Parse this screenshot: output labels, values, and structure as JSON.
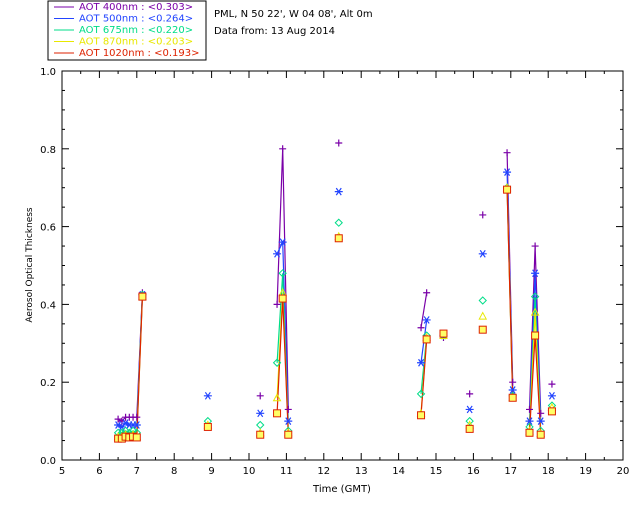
{
  "chart_data": {
    "type": "scatter",
    "title": "",
    "xlabel": "Time (GMT)",
    "ylabel": "Aerosol Optical Thickness",
    "xlim": [
      5,
      20
    ],
    "ylim": [
      0.0,
      1.0
    ],
    "x_ticks": [
      "5",
      "6",
      "7",
      "8",
      "9",
      "10",
      "11",
      "12",
      "13",
      "14",
      "15",
      "16",
      "17",
      "18",
      "19",
      "20"
    ],
    "y_ticks": [
      "0.0",
      "0.2",
      "0.4",
      "0.6",
      "0.8",
      "1.0"
    ],
    "header": {
      "line1": "PML, N 50 22', W 04 08', Alt 0m",
      "line2": "Data from: 13 Aug 2014"
    },
    "legend": [
      {
        "label": "AOT  400nm : <0.303>",
        "color": "#7a00a8"
      },
      {
        "label": "AOT  500nm : <0.264>",
        "color": "#2244ff"
      },
      {
        "label": "AOT  675nm : <0.220>",
        "color": "#00dd88"
      },
      {
        "label": "AOT  870nm : <0.203>",
        "color": "#e8e800"
      },
      {
        "label": "AOT 1020nm : <0.193>",
        "color": "#dd2200"
      }
    ],
    "series": [
      {
        "name": "AOT 400nm",
        "color": "#7a00a8",
        "marker": "plus",
        "points": [
          [
            6.5,
            0.105
          ],
          [
            6.6,
            0.1
          ],
          [
            6.7,
            0.11
          ],
          [
            6.8,
            0.11
          ],
          [
            6.9,
            0.11
          ],
          [
            7.0,
            0.11
          ],
          [
            7.15,
            0.43
          ],
          [
            10.75,
            0.4
          ],
          [
            10.9,
            0.8
          ],
          [
            11.05,
            0.13
          ],
          [
            14.6,
            0.34
          ],
          [
            14.75,
            0.43
          ],
          [
            16.9,
            0.79
          ],
          [
            17.05,
            0.2
          ],
          [
            17.5,
            0.13
          ],
          [
            17.65,
            0.55
          ],
          [
            17.8,
            0.12
          ]
        ],
        "isolated": [
          [
            10.3,
            0.165
          ],
          [
            12.4,
            0.815
          ],
          [
            15.2,
            0.315
          ],
          [
            15.9,
            0.17
          ],
          [
            16.25,
            0.63
          ],
          [
            18.1,
            0.195
          ]
        ]
      },
      {
        "name": "AOT 500nm",
        "color": "#2244ff",
        "marker": "asterisk",
        "points": [
          [
            6.5,
            0.09
          ],
          [
            6.6,
            0.085
          ],
          [
            6.7,
            0.095
          ],
          [
            6.8,
            0.09
          ],
          [
            6.9,
            0.09
          ],
          [
            7.0,
            0.09
          ],
          [
            7.15,
            0.425
          ],
          [
            10.75,
            0.53
          ],
          [
            10.9,
            0.56
          ],
          [
            11.05,
            0.1
          ],
          [
            14.6,
            0.25
          ],
          [
            14.75,
            0.36
          ],
          [
            16.9,
            0.74
          ],
          [
            17.05,
            0.18
          ],
          [
            17.5,
            0.1
          ],
          [
            17.65,
            0.48
          ],
          [
            17.8,
            0.1
          ]
        ],
        "isolated": [
          [
            8.9,
            0.165
          ],
          [
            10.3,
            0.12
          ],
          [
            12.4,
            0.69
          ],
          [
            15.2,
            0.32
          ],
          [
            15.9,
            0.13
          ],
          [
            16.25,
            0.53
          ],
          [
            18.1,
            0.165
          ]
        ]
      },
      {
        "name": "AOT 675nm",
        "color": "#00dd88",
        "marker": "diamond",
        "points": [
          [
            6.5,
            0.07
          ],
          [
            6.6,
            0.07
          ],
          [
            6.7,
            0.075
          ],
          [
            6.8,
            0.07
          ],
          [
            6.9,
            0.075
          ],
          [
            7.0,
            0.07
          ],
          [
            7.15,
            0.425
          ],
          [
            10.75,
            0.25
          ],
          [
            10.9,
            0.48
          ],
          [
            11.05,
            0.075
          ],
          [
            14.6,
            0.17
          ],
          [
            14.75,
            0.32
          ],
          [
            16.9,
            0.7
          ],
          [
            17.05,
            0.165
          ],
          [
            17.5,
            0.085
          ],
          [
            17.65,
            0.42
          ],
          [
            17.8,
            0.075
          ]
        ],
        "isolated": [
          [
            8.9,
            0.1
          ],
          [
            10.3,
            0.09
          ],
          [
            12.4,
            0.61
          ],
          [
            15.2,
            0.32
          ],
          [
            15.9,
            0.1
          ],
          [
            16.25,
            0.41
          ],
          [
            18.1,
            0.14
          ]
        ]
      },
      {
        "name": "AOT 870nm",
        "color": "#e8e800",
        "marker": "triangle",
        "points": [
          [
            6.5,
            0.06
          ],
          [
            6.6,
            0.06
          ],
          [
            6.7,
            0.065
          ],
          [
            6.8,
            0.06
          ],
          [
            6.9,
            0.065
          ],
          [
            7.0,
            0.06
          ],
          [
            7.15,
            0.42
          ],
          [
            10.75,
            0.16
          ],
          [
            10.9,
            0.43
          ],
          [
            11.05,
            0.07
          ],
          [
            14.6,
            0.12
          ],
          [
            14.75,
            0.315
          ],
          [
            16.9,
            0.7
          ],
          [
            17.05,
            0.16
          ],
          [
            17.5,
            0.075
          ],
          [
            17.65,
            0.38
          ],
          [
            17.8,
            0.068
          ]
        ],
        "isolated": [
          [
            8.9,
            0.09
          ],
          [
            10.3,
            0.07
          ],
          [
            12.4,
            0.575
          ],
          [
            15.2,
            0.32
          ],
          [
            15.9,
            0.09
          ],
          [
            16.25,
            0.37
          ],
          [
            18.1,
            0.135
          ]
        ]
      },
      {
        "name": "AOT 1020nm",
        "color": "#dd2200",
        "marker": "square",
        "points": [
          [
            6.5,
            0.055
          ],
          [
            6.6,
            0.055
          ],
          [
            6.7,
            0.06
          ],
          [
            6.8,
            0.058
          ],
          [
            6.9,
            0.06
          ],
          [
            7.0,
            0.058
          ],
          [
            7.15,
            0.42
          ],
          [
            10.75,
            0.12
          ],
          [
            10.9,
            0.415
          ],
          [
            11.05,
            0.065
          ],
          [
            14.6,
            0.115
          ],
          [
            14.75,
            0.31
          ],
          [
            16.9,
            0.695
          ],
          [
            17.05,
            0.16
          ],
          [
            17.5,
            0.07
          ],
          [
            17.65,
            0.32
          ],
          [
            17.8,
            0.065
          ]
        ],
        "isolated": [
          [
            8.9,
            0.085
          ],
          [
            10.3,
            0.065
          ],
          [
            12.4,
            0.57
          ],
          [
            15.2,
            0.325
          ],
          [
            15.9,
            0.08
          ],
          [
            16.25,
            0.335
          ],
          [
            18.1,
            0.125
          ]
        ]
      }
    ]
  }
}
